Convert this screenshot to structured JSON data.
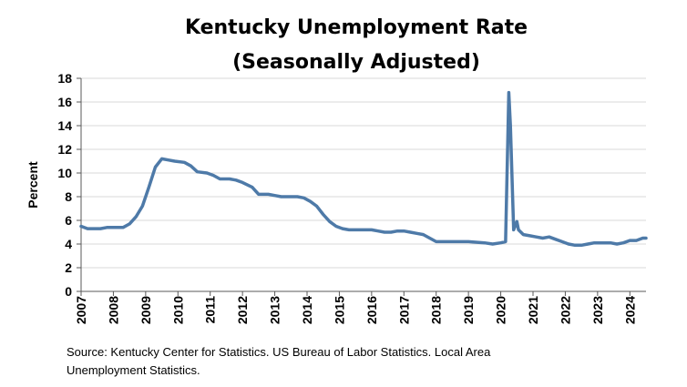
{
  "chart_data": {
    "type": "line",
    "title": [
      "Kentucky Unemployment Rate",
      "(Seasonally Adjusted)"
    ],
    "ylabel": "Percent",
    "xlabel": "",
    "ylim": [
      0,
      18
    ],
    "yticks": [
      0,
      2,
      4,
      6,
      8,
      10,
      12,
      14,
      16,
      18
    ],
    "xlim": [
      2007,
      2024.5
    ],
    "xticks": [
      "2007",
      "2008",
      "2009",
      "2010",
      "2011",
      "2012",
      "2013",
      "2014",
      "2015",
      "2016",
      "2017",
      "2018",
      "2019",
      "2020",
      "2021",
      "2022",
      "2023",
      "2024"
    ],
    "grid": true,
    "legend": "none",
    "line_color": "#4e7aa8",
    "series": [
      {
        "x": [
          2007.0,
          2007.2,
          2007.4,
          2007.6,
          2007.8,
          2008.0,
          2008.3,
          2008.5,
          2008.7,
          2008.9,
          2009.1,
          2009.3,
          2009.5,
          2009.7,
          2009.9,
          2010.2,
          2010.4,
          2010.6,
          2010.9,
          2011.1,
          2011.3,
          2011.6,
          2011.8,
          2012.0,
          2012.3,
          2012.5,
          2012.8,
          2013.0,
          2013.2,
          2013.5,
          2013.7,
          2013.9,
          2014.1,
          2014.3,
          2014.5,
          2014.7,
          2014.9,
          2015.1,
          2015.3,
          2015.6,
          2015.8,
          2016.0,
          2016.2,
          2016.4,
          2016.6,
          2016.8,
          2017.0,
          2017.2,
          2017.4,
          2017.6,
          2017.8,
          2018.0,
          2018.5,
          2019.0,
          2019.5,
          2019.75,
          2020.0,
          2020.15,
          2020.25,
          2020.3,
          2020.4,
          2020.5,
          2020.55,
          2020.7,
          2020.9,
          2021.1,
          2021.3,
          2021.5,
          2021.7,
          2021.9,
          2022.1,
          2022.3,
          2022.5,
          2022.7,
          2022.9,
          2023.0,
          2023.2,
          2023.4,
          2023.6,
          2023.8,
          2024.0,
          2024.2,
          2024.4,
          2024.5
        ],
        "values": [
          5.5,
          5.3,
          5.3,
          5.3,
          5.4,
          5.4,
          5.4,
          5.7,
          6.3,
          7.2,
          8.8,
          10.5,
          11.2,
          11.1,
          11.0,
          10.9,
          10.6,
          10.1,
          10.0,
          9.8,
          9.5,
          9.5,
          9.4,
          9.2,
          8.8,
          8.2,
          8.2,
          8.1,
          8.0,
          8.0,
          8.0,
          7.9,
          7.6,
          7.2,
          6.5,
          5.9,
          5.5,
          5.3,
          5.2,
          5.2,
          5.2,
          5.2,
          5.1,
          5.0,
          5.0,
          5.1,
          5.1,
          5.0,
          4.9,
          4.8,
          4.5,
          4.2,
          4.2,
          4.2,
          4.1,
          4.0,
          4.1,
          4.2,
          16.8,
          14.0,
          5.2,
          5.9,
          5.2,
          4.8,
          4.7,
          4.6,
          4.5,
          4.6,
          4.4,
          4.2,
          4.0,
          3.9,
          3.9,
          4.0,
          4.1,
          4.1,
          4.1,
          4.1,
          4.0,
          4.1,
          4.3,
          4.3,
          4.5,
          4.5
        ]
      }
    ],
    "source": [
      "Source: Kentucky Center for Statistics. US Bureau of Labor Statistics. Local Area",
      "Unemployment Statistics."
    ]
  }
}
